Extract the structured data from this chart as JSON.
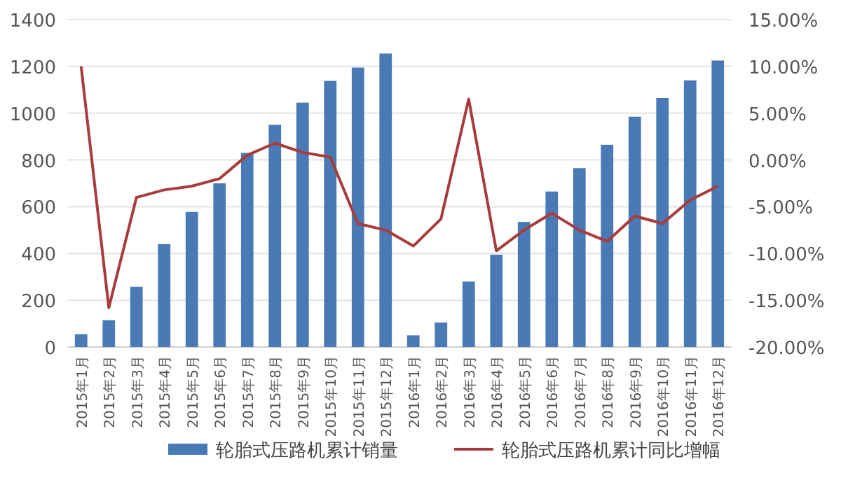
{
  "chart_data": {
    "type": "bar",
    "categories": [
      "2015年1月",
      "2015年2月",
      "2015年3月",
      "2015年4月",
      "2015年5月",
      "2015年6月",
      "2015年7月",
      "2015年8月",
      "2015年9月",
      "2015年10月",
      "2015年11月",
      "2015年12月",
      "2016年1月",
      "2016年2月",
      "2016年3月",
      "2016年4月",
      "2016年5月",
      "2016年6月",
      "2016年7月",
      "2016年8月",
      "2016年9月",
      "2016年10月",
      "2016年11月",
      "2016年12月"
    ],
    "series": [
      {
        "name": "轮胎式压路机累计销量",
        "color": "#4a7ab5",
        "values": [
          55,
          115,
          258,
          440,
          578,
          700,
          830,
          950,
          1045,
          1138,
          1195,
          1255,
          50,
          105,
          280,
          395,
          535,
          665,
          765,
          865,
          985,
          1065,
          1140,
          1225
        ]
      },
      {
        "name": "轮胎式压路机累计同比增幅",
        "type": "line",
        "axis": "y2",
        "color": "#a83c3c",
        "values": [
          10,
          -15.8,
          -4,
          -3.2,
          -2.8,
          -2,
          0.5,
          1.8,
          0.8,
          0.3,
          -6.8,
          -7.5,
          -9.2,
          -6.3,
          6.5,
          -9.7,
          -7.5,
          -5.7,
          -7.5,
          -8.7,
          -6,
          -6.8,
          -4.3,
          -2.8
        ]
      }
    ],
    "ylim": [
      0,
      1400
    ],
    "yticks": [
      0,
      200,
      400,
      600,
      800,
      1000,
      1200,
      1400
    ],
    "y2lim": [
      -20,
      15
    ],
    "y2ticks": [
      {
        "value": -20,
        "label": "-20.00%"
      },
      {
        "value": -15,
        "label": "-15.00%"
      },
      {
        "value": -10,
        "label": "-10.00%"
      },
      {
        "value": -5,
        "label": "-5.00%"
      },
      {
        "value": 0,
        "label": "0.00%"
      },
      {
        "value": 5,
        "label": "5.00%"
      },
      {
        "value": 10,
        "label": "10.00%"
      },
      {
        "value": 15,
        "label": "15.00%"
      }
    ],
    "grid": "y",
    "legend": "bottom",
    "marker": "none",
    "line_style": "solid"
  }
}
